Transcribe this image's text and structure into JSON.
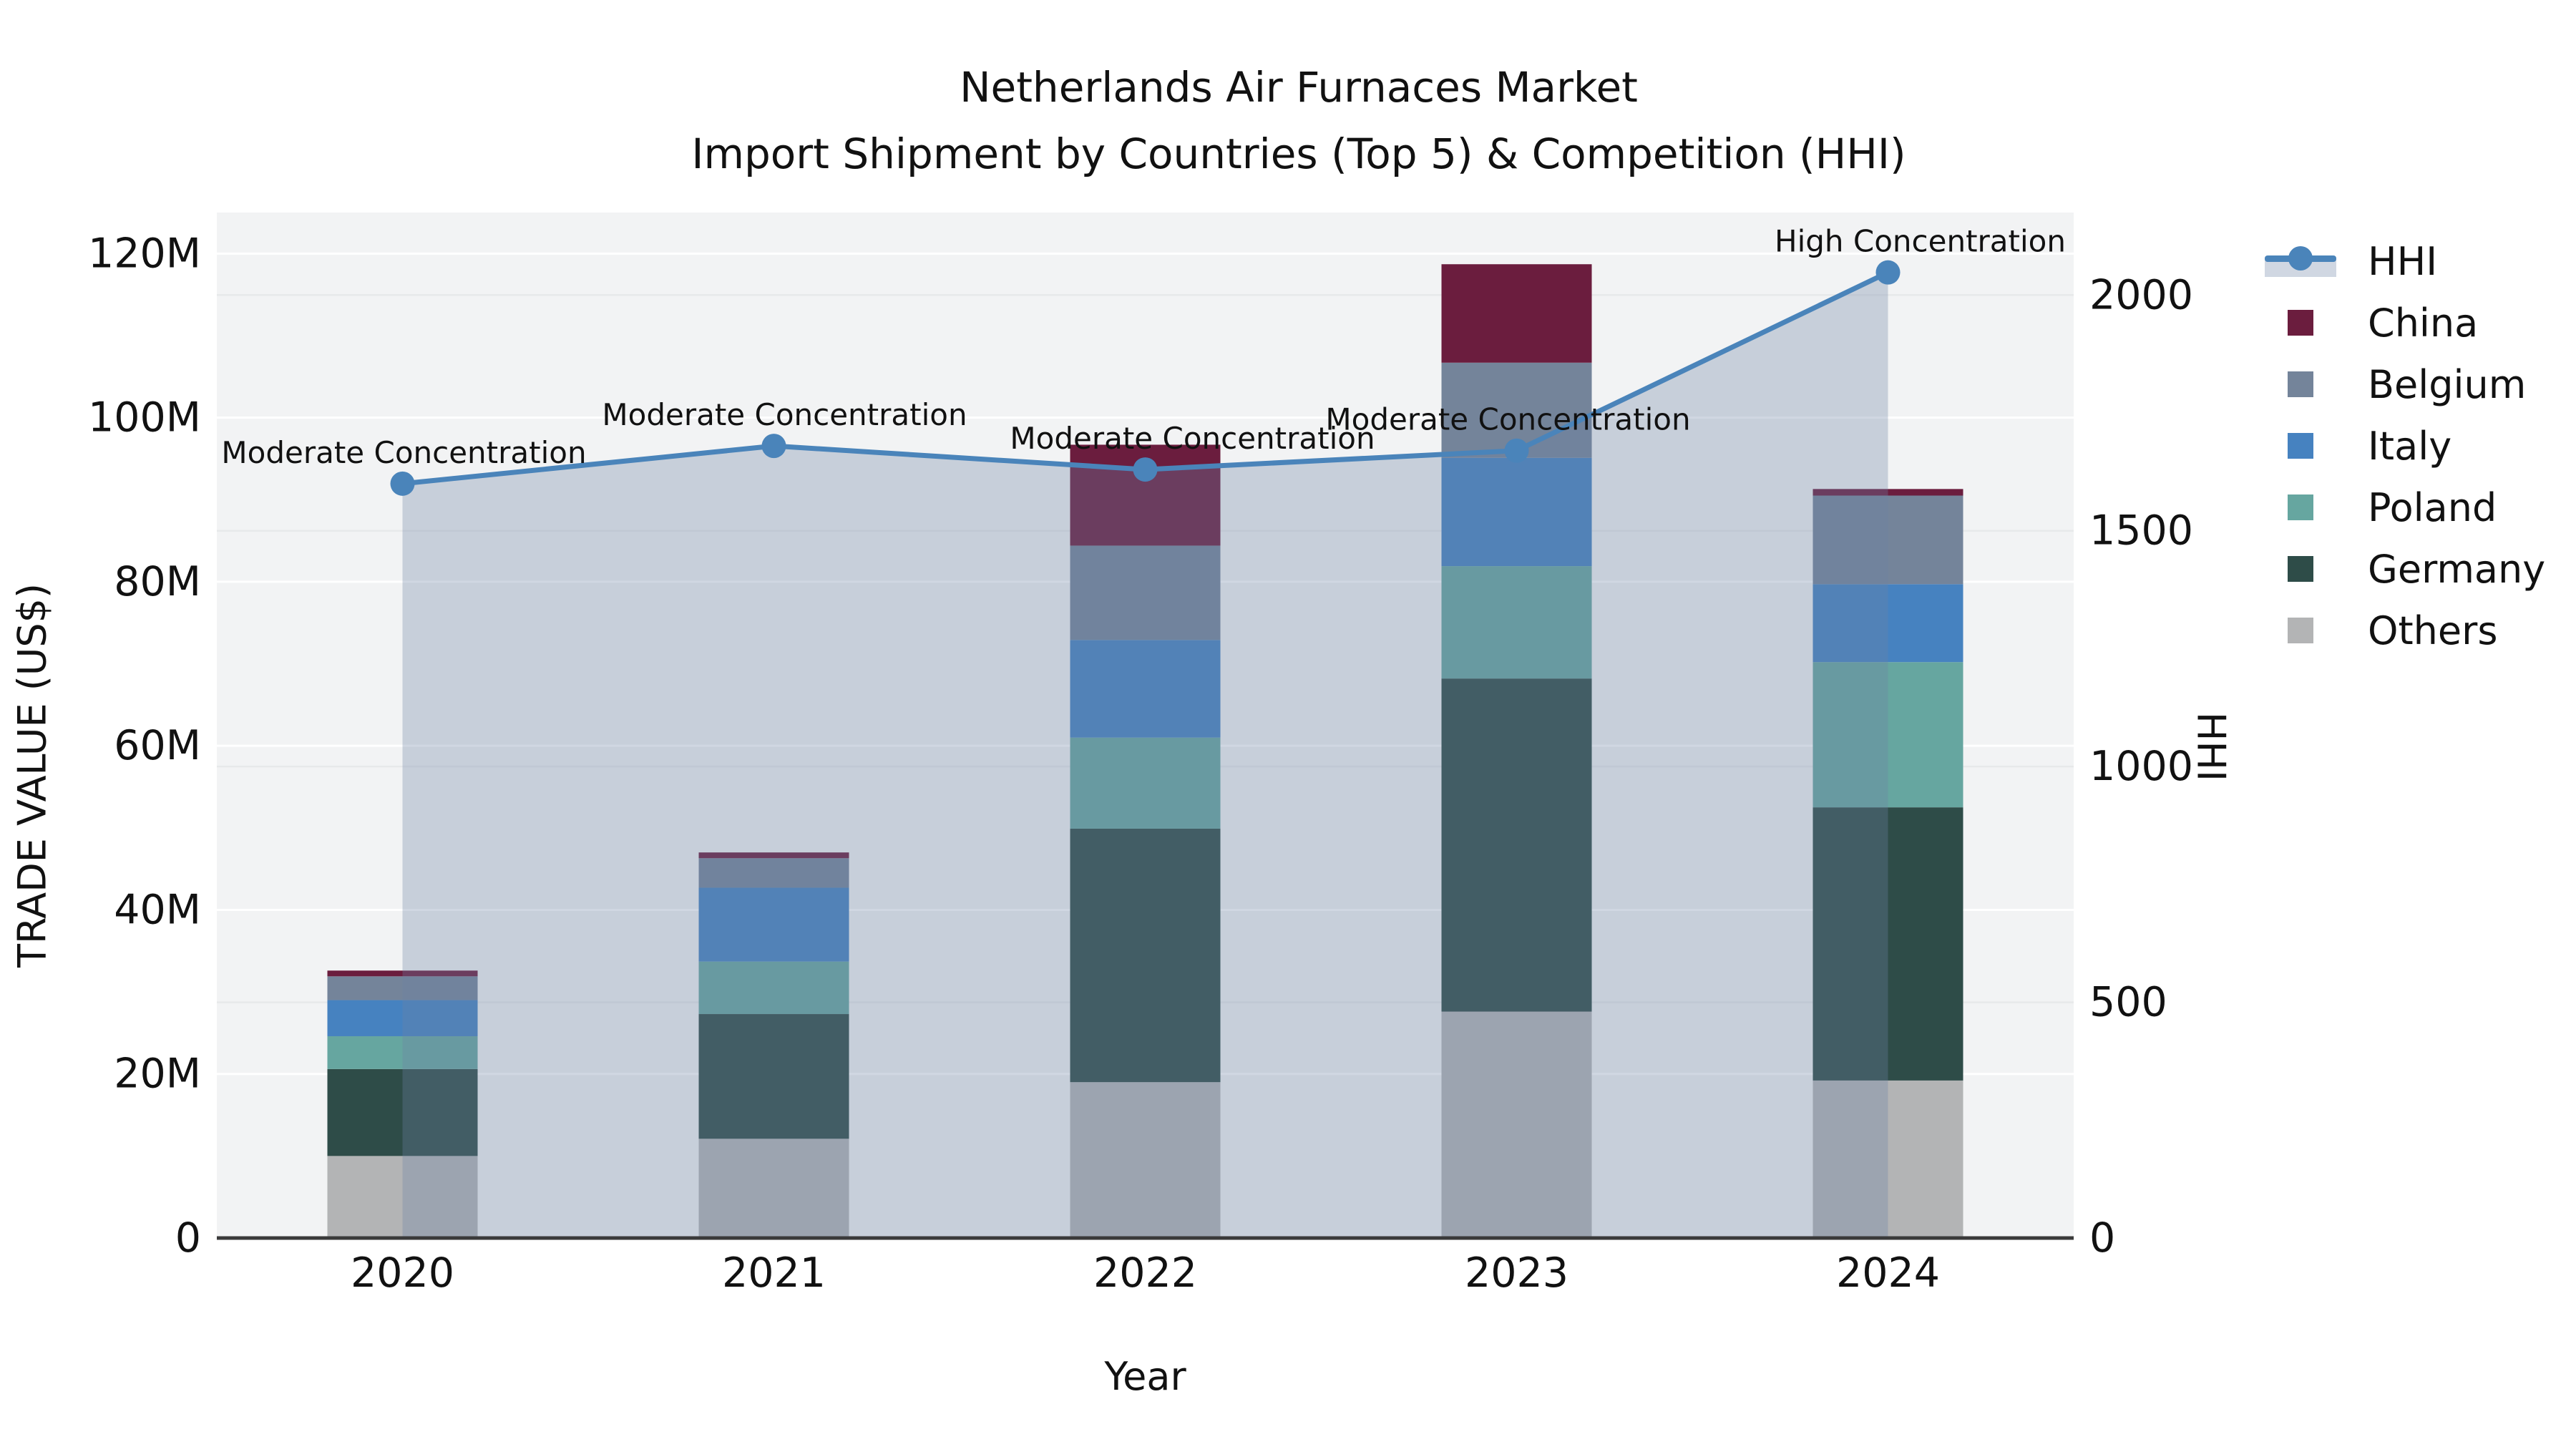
{
  "chart_data": {
    "type": "bar",
    "subtype": "stacked-bars-with-line-area",
    "title": "Netherlands Air Furnaces Market",
    "subtitle": "Import Shipment by Countries (Top 5) & Competition (HHI)",
    "xlabel": "Year",
    "ylabel_left": "TRADE VALUE (US$)",
    "ylabel_right": "HHI",
    "categories": [
      "2020",
      "2021",
      "2022",
      "2023",
      "2024"
    ],
    "values_unit": "millions US$",
    "ylim_left_millions": [
      0,
      125
    ],
    "yticks_left_millions": [
      0,
      20,
      40,
      60,
      80,
      100,
      120
    ],
    "ytick_labels_left": [
      "0",
      "20M",
      "40M",
      "60M",
      "80M",
      "100M",
      "120M"
    ],
    "ylim_right": [
      0,
      2175
    ],
    "yticks_right": [
      0,
      500,
      1000,
      1500,
      2000
    ],
    "ytick_labels_right": [
      "0",
      "500",
      "1000",
      "1500",
      "2000"
    ],
    "grid": true,
    "legend_position": "right",
    "legend": [
      "HHI",
      "China",
      "Belgium",
      "Italy",
      "Poland",
      "Germany",
      "Others"
    ],
    "stack_order_bottom_to_top": [
      "Others",
      "Germany",
      "Poland",
      "Italy",
      "Belgium",
      "China"
    ],
    "series": [
      {
        "name": "China",
        "color": "#6b1d3e",
        "values": [
          0.7,
          0.7,
          12.3,
          12.0,
          0.8
        ]
      },
      {
        "name": "Belgium",
        "color": "#74849a",
        "values": [
          2.9,
          3.6,
          11.5,
          11.6,
          10.8
        ]
      },
      {
        "name": "Italy",
        "color": "#4682c0",
        "values": [
          4.4,
          9.0,
          11.9,
          13.2,
          9.5
        ]
      },
      {
        "name": "Poland",
        "color": "#66a6a0",
        "values": [
          4.0,
          6.4,
          11.1,
          13.7,
          17.7
        ]
      },
      {
        "name": "Germany",
        "color": "#2e4c48",
        "values": [
          10.6,
          15.2,
          30.9,
          40.6,
          33.3
        ]
      },
      {
        "name": "Others",
        "color": "#b3b4b5",
        "values": [
          10.0,
          12.1,
          19.0,
          27.6,
          19.2
        ]
      }
    ],
    "bar_totals_millions": [
      32.6,
      47.0,
      96.7,
      118.7,
      91.3
    ],
    "hhi_line": {
      "name": "HHI",
      "color": "#4a84ba",
      "area_fill": "rgba(110,130,165,0.32)",
      "values": [
        1600,
        1680,
        1630,
        1670,
        2048
      ]
    },
    "annotations": [
      {
        "x": "2020",
        "text": "Moderate Concentration"
      },
      {
        "x": "2021",
        "text": "Moderate Concentration"
      },
      {
        "x": "2022",
        "text": "Moderate Concentration"
      },
      {
        "x": "2023",
        "text": "Moderate Concentration"
      },
      {
        "x": "2024",
        "text": "High Concentration"
      }
    ],
    "colors": {
      "plot_background": "#f2f3f4",
      "figure_background": "#ffffff",
      "grid_left_axis": "#ffffff",
      "grid_right_axis": "#e7e9ea",
      "axis_line": "#3a3a3a",
      "text": "#111111"
    }
  }
}
